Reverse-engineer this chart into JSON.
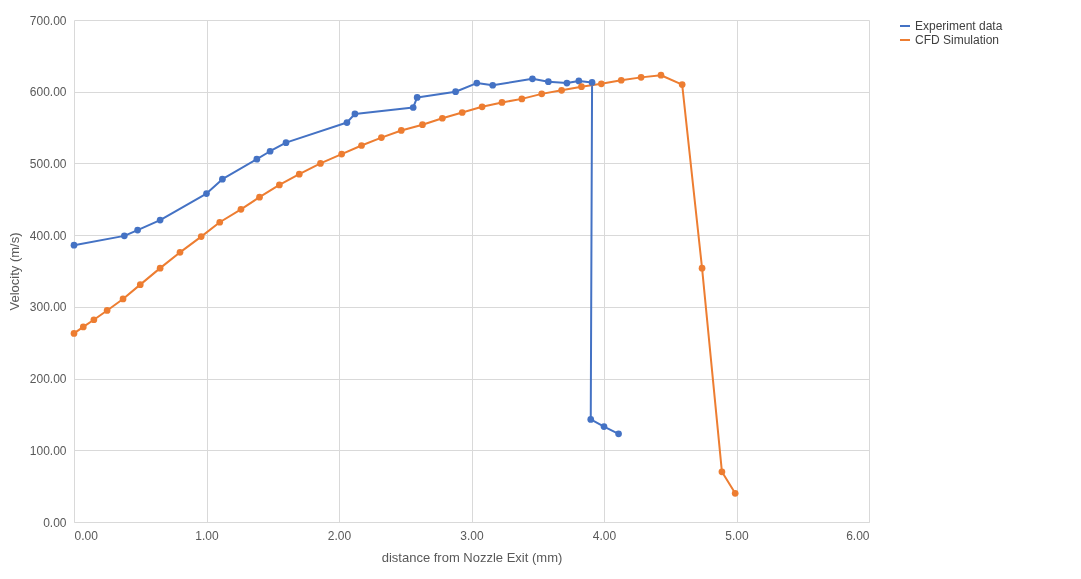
{
  "chart_data": {
    "type": "line",
    "xlabel": "distance from Nozzle Exit (mm)",
    "ylabel": "Velocity (m/s)",
    "xlim": [
      0,
      6
    ],
    "ylim": [
      0,
      700
    ],
    "xticks": [
      {
        "value": 0,
        "label": "0.00"
      },
      {
        "value": 1,
        "label": "1.00"
      },
      {
        "value": 2,
        "label": "2.00"
      },
      {
        "value": 3,
        "label": "3.00"
      },
      {
        "value": 4,
        "label": "4.00"
      },
      {
        "value": 5,
        "label": "5.00"
      },
      {
        "value": 6,
        "label": "6.00"
      }
    ],
    "yticks": [
      {
        "value": 0,
        "label": "0.00"
      },
      {
        "value": 100,
        "label": "100.00"
      },
      {
        "value": 200,
        "label": "200.00"
      },
      {
        "value": 300,
        "label": "300.00"
      },
      {
        "value": 400,
        "label": "400.00"
      },
      {
        "value": 500,
        "label": "500.00"
      },
      {
        "value": 600,
        "label": "600.00"
      },
      {
        "value": 700,
        "label": "700.00"
      }
    ],
    "grid": true,
    "legend": "right",
    "marker": "circle",
    "line_style": "solid",
    "series": [
      {
        "name": "Experiment data",
        "color": "#4472c4",
        "x": [
          0,
          0.38,
          0.48,
          0.65,
          1.0,
          1.12,
          1.38,
          1.48,
          1.6,
          2.06,
          2.12,
          2.56,
          2.59,
          2.88,
          3.04,
          3.16,
          3.46,
          3.58,
          3.72,
          3.81,
          3.91,
          3.9,
          4.0,
          4.11
        ],
        "values": [
          386,
          399,
          407,
          421,
          458,
          478,
          506,
          517,
          529,
          557,
          569,
          578,
          592,
          600,
          612,
          609,
          618,
          614,
          612,
          615,
          613,
          143,
          133,
          123
        ]
      },
      {
        "name": "CFD Simulation",
        "color": "#ed7d31",
        "x": [
          0,
          0.07,
          0.15,
          0.25,
          0.37,
          0.5,
          0.65,
          0.8,
          0.96,
          1.1,
          1.26,
          1.4,
          1.55,
          1.7,
          1.86,
          2.02,
          2.17,
          2.32,
          2.47,
          2.63,
          2.78,
          2.93,
          3.08,
          3.23,
          3.38,
          3.53,
          3.68,
          3.83,
          3.98,
          4.13,
          4.28,
          4.43,
          4.59,
          4.74,
          4.89,
          4.99
        ],
        "values": [
          263,
          272,
          282,
          295,
          311,
          331,
          354,
          376,
          398,
          418,
          436,
          453,
          470,
          485,
          500,
          513,
          525,
          536,
          546,
          554,
          563,
          571,
          579,
          585,
          590,
          597,
          602,
          607,
          611,
          616,
          620,
          623,
          610,
          354,
          70,
          40
        ]
      }
    ]
  }
}
